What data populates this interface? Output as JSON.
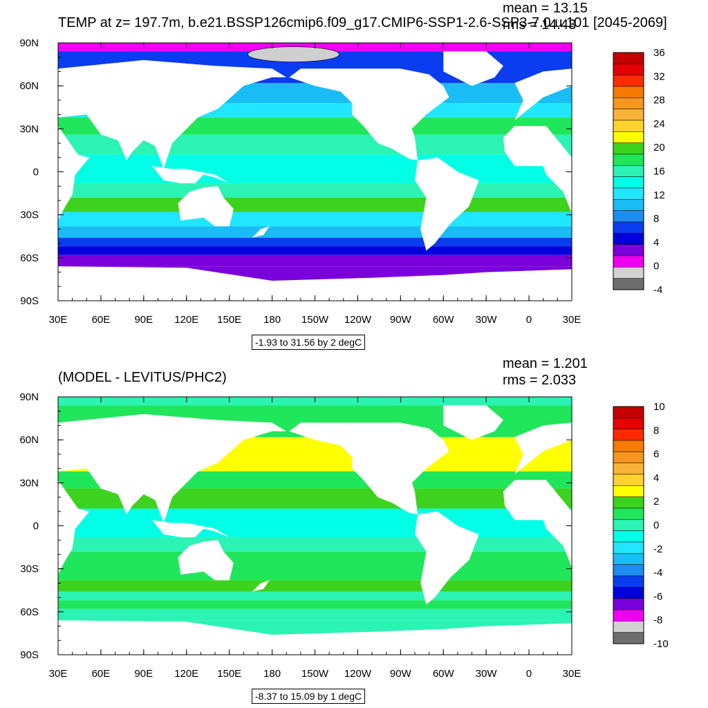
{
  "panels": [
    {
      "title": "TEMP at z= 197.7m, b.e21.BSSP126cmip6.f09_g17.CMIP6-SSP1-2.6-SSP3-7.0.u.101 [2045-2069]",
      "mean_text": "mean = 13.15",
      "rms_text": "rms = 14.43",
      "caption": "-1.93 to 31.56 by 2 degC"
    },
    {
      "title": "(MODEL - LEVITUS/PHC2)",
      "mean_text": "mean = 1.201",
      "rms_text": "rms = 2.033",
      "caption": "-8.37 to 15.09 by 1 degC"
    }
  ],
  "chart_data": [
    {
      "type": "heatmap",
      "title": "TEMP at z= 197.7m, b.e21.BSSP126cmip6.f09_g17.CMIP6-SSP1-2.6-SSP3-7.0.u.101 [2045-2069]",
      "x_ticks": [
        "30E",
        "60E",
        "90E",
        "120E",
        "150E",
        "180",
        "150W",
        "120W",
        "90W",
        "60W",
        "30W",
        "0",
        "30E"
      ],
      "y_ticks": [
        "90N",
        "60N",
        "30N",
        "0",
        "30S",
        "60S",
        "90S"
      ],
      "xlim": [
        30,
        390
      ],
      "ylim": [
        -90,
        90
      ],
      "colorbar": {
        "labels": [
          "36",
          "32",
          "28",
          "24",
          "20",
          "16",
          "12",
          "8",
          "4",
          "0",
          "-4"
        ],
        "colors": [
          "#c40000",
          "#e60000",
          "#ff2a00",
          "#f47a00",
          "#f5961e",
          "#f8b23a",
          "#ffd22e",
          "#ffff00",
          "#3cd21e",
          "#1fe65a",
          "#2af3b4",
          "#00ffe6",
          "#20e6ff",
          "#18bdf5",
          "#1e8cf0",
          "#0a3cf0",
          "#0000dc",
          "#7a00dc",
          "#f000f0",
          "#d2d2d2",
          "#6e6e6e"
        ]
      },
      "mean": 13.15,
      "rms": 14.43,
      "contour_range": "-1.93 to 31.56 by 2 degC"
    },
    {
      "type": "heatmap",
      "title": "(MODEL - LEVITUS/PHC2)",
      "x_ticks": [
        "30E",
        "60E",
        "90E",
        "120E",
        "150E",
        "180",
        "150W",
        "120W",
        "90W",
        "60W",
        "30W",
        "0",
        "30E"
      ],
      "y_ticks": [
        "90N",
        "60N",
        "30N",
        "0",
        "30S",
        "60S",
        "90S"
      ],
      "xlim": [
        30,
        390
      ],
      "ylim": [
        -90,
        90
      ],
      "colorbar": {
        "labels": [
          "10",
          "8",
          "6",
          "4",
          "2",
          "0",
          "-2",
          "-4",
          "-6",
          "-8",
          "-10"
        ],
        "colors": [
          "#c40000",
          "#e60000",
          "#ff2a00",
          "#f47a00",
          "#f5961e",
          "#f8b23a",
          "#ffd22e",
          "#ffff00",
          "#3cd21e",
          "#1fe65a",
          "#2af3b4",
          "#00ffe6",
          "#20e6ff",
          "#18bdf5",
          "#1e8cf0",
          "#0a3cf0",
          "#0000dc",
          "#7a00dc",
          "#f000f0",
          "#d2d2d2",
          "#6e6e6e"
        ]
      },
      "mean": 1.201,
      "rms": 2.033,
      "contour_range": "-8.37 to 15.09 by 1 degC"
    }
  ],
  "land_color": "#ffffff",
  "ice_color": "#cfcfcf"
}
